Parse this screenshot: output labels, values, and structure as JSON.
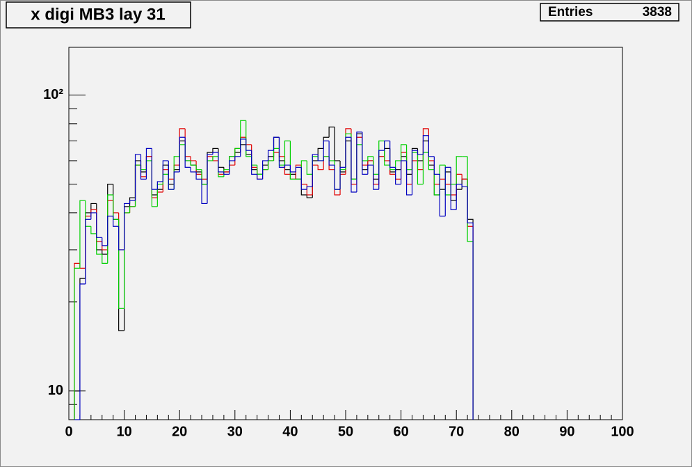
{
  "chart_data": {
    "type": "histogram",
    "title": "x digi MB3 lay 31",
    "stats": {
      "label": "Entries",
      "value": 3838
    },
    "bins": [
      1,
      2,
      3,
      4,
      5,
      6,
      7,
      8,
      9,
      10,
      11,
      12,
      13,
      14,
      15,
      16,
      17,
      18,
      19,
      20,
      21,
      22,
      23,
      24,
      25,
      26,
      27,
      28,
      29,
      30,
      31,
      32,
      33,
      34,
      35,
      36,
      37,
      38,
      39,
      40,
      41,
      42,
      43,
      44,
      45,
      46,
      47,
      48,
      49,
      50,
      51,
      52,
      53,
      54,
      55,
      56,
      57,
      58,
      59,
      60,
      61,
      62,
      63,
      64,
      65,
      66,
      67,
      68,
      69,
      70,
      71,
      72,
      73
    ],
    "series": [
      {
        "color": "#000000",
        "values": [
          10,
          24,
          40,
          43,
          30,
          29,
          50,
          38,
          16,
          42,
          45,
          60,
          55,
          62,
          46,
          48,
          58,
          50,
          56,
          70,
          60,
          58,
          55,
          50,
          64,
          66,
          57,
          55,
          62,
          64,
          68,
          63,
          56,
          54,
          58,
          62,
          72,
          60,
          56,
          54,
          52,
          46,
          45,
          60,
          66,
          72,
          78,
          60,
          55,
          70,
          52,
          74,
          56,
          60,
          52,
          62,
          66,
          55,
          56,
          62,
          54,
          66,
          60,
          70,
          58,
          46,
          48,
          55,
          44,
          48,
          52,
          38
        ]
      },
      {
        "color": "#e00000",
        "values": [
          27,
          26,
          39,
          41,
          32,
          30,
          44,
          40,
          30,
          40,
          42,
          58,
          53,
          62,
          45,
          47,
          56,
          52,
          58,
          77,
          62,
          60,
          54,
          52,
          62,
          60,
          54,
          55,
          58,
          66,
          72,
          68,
          57,
          52,
          56,
          60,
          64,
          62,
          54,
          52,
          58,
          50,
          46,
          58,
          56,
          62,
          56,
          46,
          54,
          77,
          50,
          72,
          58,
          60,
          50,
          62,
          60,
          54,
          52,
          64,
          50,
          60,
          56,
          77,
          60,
          50,
          52,
          50,
          46,
          54,
          52,
          36
        ]
      },
      {
        "color": "#00d000",
        "values": [
          26,
          44,
          36,
          34,
          29,
          27,
          46,
          38,
          19,
          40,
          42,
          58,
          56,
          60,
          42,
          50,
          54,
          48,
          62,
          68,
          60,
          58,
          56,
          50,
          60,
          62,
          53,
          56,
          62,
          66,
          82,
          62,
          58,
          54,
          56,
          60,
          66,
          58,
          70,
          52,
          52,
          60,
          54,
          62,
          60,
          62,
          60,
          48,
          56,
          74,
          52,
          68,
          60,
          62,
          54,
          70,
          58,
          56,
          60,
          68,
          56,
          64,
          50,
          64,
          56,
          46,
          58,
          46,
          50,
          62,
          62,
          32
        ]
      },
      {
        "color": "#0000c0",
        "values": [
          0,
          23,
          38,
          40,
          33,
          31,
          39,
          36,
          30,
          43,
          44,
          63,
          52,
          66,
          48,
          51,
          60,
          48,
          55,
          72,
          57,
          55,
          52,
          43,
          63,
          64,
          55,
          54,
          60,
          62,
          71,
          65,
          54,
          52,
          60,
          65,
          72,
          57,
          58,
          55,
          57,
          48,
          49,
          63,
          60,
          70,
          58,
          48,
          57,
          72,
          47,
          75,
          54,
          58,
          48,
          65,
          70,
          57,
          50,
          60,
          46,
          65,
          63,
          73,
          62,
          54,
          39,
          57,
          41,
          50,
          49,
          37
        ]
      }
    ],
    "xlim": [
      0,
      100
    ],
    "xticks": [
      0,
      10,
      20,
      30,
      40,
      50,
      60,
      70,
      80,
      90,
      100
    ],
    "xminorticks": [
      2,
      4,
      6,
      8,
      12,
      14,
      16,
      18,
      22,
      24,
      26,
      28,
      32,
      34,
      36,
      38,
      42,
      44,
      46,
      48,
      52,
      54,
      56,
      58,
      62,
      64,
      66,
      68,
      72,
      74,
      76,
      78,
      82,
      84,
      86,
      88,
      92,
      94,
      96,
      98
    ],
    "ylim": [
      8,
      145
    ],
    "log": true,
    "yticks": [
      10,
      {
        "value": 100,
        "label": "10²"
      }
    ],
    "yminorticks": [
      9,
      20,
      30,
      40,
      50,
      60,
      70,
      80,
      90
    ]
  }
}
